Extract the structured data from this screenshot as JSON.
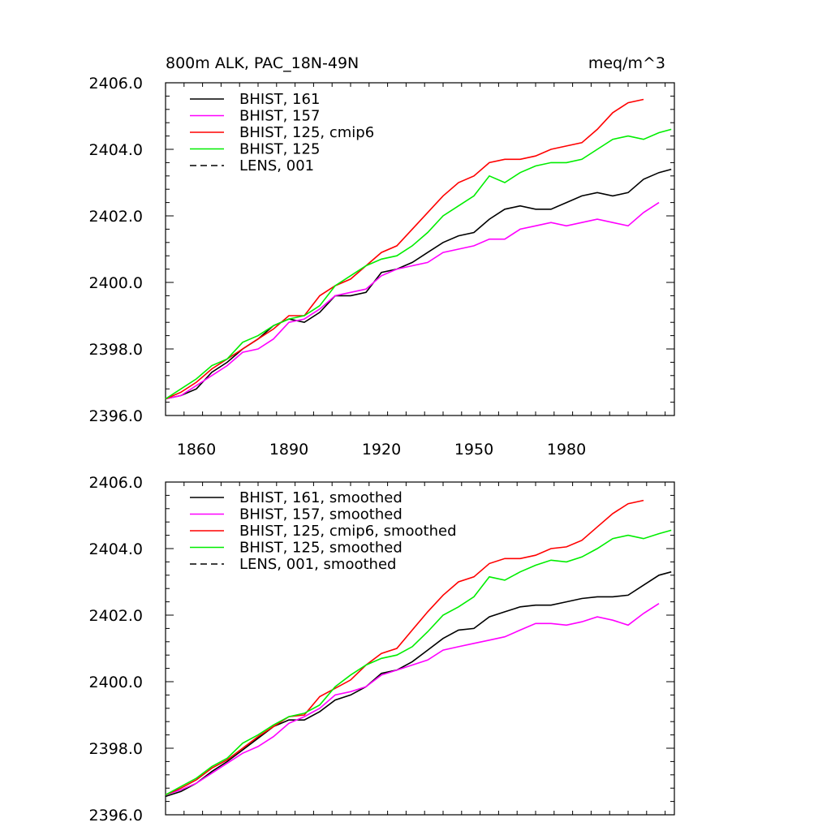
{
  "chart_data": [
    {
      "type": "line",
      "title_left": "800m ALK, PAC_18N-49N",
      "title_right": "meq/m^3",
      "xlim": [
        1850,
        2015
      ],
      "ylim": [
        2396.0,
        2406.0
      ],
      "x_ticks": [
        1860,
        1890,
        1920,
        1950,
        1980
      ],
      "y_ticks": [
        "2396.0",
        "2398.0",
        "2400.0",
        "2402.0",
        "2404.0",
        "2406.0"
      ],
      "legend_placement": "top-left",
      "series": [
        {
          "name": "BHIST, 161",
          "color": "#000000",
          "dash": "solid",
          "x": [
            1850,
            1855,
            1860,
            1865,
            1870,
            1875,
            1880,
            1885,
            1890,
            1895,
            1900,
            1905,
            1910,
            1915,
            1920,
            1925,
            1930,
            1935,
            1940,
            1945,
            1950,
            1955,
            1960,
            1965,
            1970,
            1975,
            1980,
            1985,
            1990,
            1995,
            2000,
            2005,
            2010,
            2014
          ],
          "y": [
            2396.5,
            2396.6,
            2396.8,
            2397.3,
            2397.6,
            2398.0,
            2398.3,
            2398.7,
            2398.9,
            2398.8,
            2399.1,
            2399.6,
            2399.6,
            2399.7,
            2400.3,
            2400.4,
            2400.6,
            2400.9,
            2401.2,
            2401.4,
            2401.5,
            2401.9,
            2402.2,
            2402.3,
            2402.2,
            2402.2,
            2402.4,
            2402.6,
            2402.7,
            2402.6,
            2402.7,
            2403.1,
            2403.3,
            2403.4
          ]
        },
        {
          "name": "BHIST, 157",
          "color": "#ff00ff",
          "dash": "solid",
          "x": [
            1850,
            1855,
            1860,
            1865,
            1870,
            1875,
            1880,
            1885,
            1890,
            1895,
            1900,
            1905,
            1910,
            1915,
            1920,
            1925,
            1930,
            1935,
            1940,
            1945,
            1950,
            1955,
            1960,
            1965,
            1970,
            1975,
            1980,
            1985,
            1990,
            1995,
            2000,
            2005,
            2010
          ],
          "y": [
            2396.5,
            2396.6,
            2396.9,
            2397.2,
            2397.5,
            2397.9,
            2398.0,
            2398.3,
            2398.8,
            2398.9,
            2399.2,
            2399.6,
            2399.7,
            2399.8,
            2400.2,
            2400.4,
            2400.5,
            2400.6,
            2400.9,
            2401.0,
            2401.1,
            2401.3,
            2401.3,
            2401.6,
            2401.7,
            2401.8,
            2401.7,
            2401.8,
            2401.9,
            2401.8,
            2401.7,
            2402.1,
            2402.4
          ]
        },
        {
          "name": "BHIST, 125, cmip6",
          "color": "#ff0000",
          "dash": "solid",
          "x": [
            1850,
            1855,
            1860,
            1865,
            1870,
            1875,
            1880,
            1885,
            1890,
            1895,
            1900,
            1905,
            1910,
            1915,
            1920,
            1925,
            1930,
            1935,
            1940,
            1945,
            1950,
            1955,
            1960,
            1965,
            1970,
            1975,
            1980,
            1985,
            1990,
            1995,
            2000,
            2005
          ],
          "y": [
            2396.5,
            2396.7,
            2397.0,
            2397.4,
            2397.7,
            2398.0,
            2398.3,
            2398.6,
            2399.0,
            2399.0,
            2399.6,
            2399.9,
            2400.1,
            2400.5,
            2400.9,
            2401.1,
            2401.6,
            2402.1,
            2402.6,
            2403.0,
            2403.2,
            2403.6,
            2403.7,
            2403.7,
            2403.8,
            2404.0,
            2404.1,
            2404.2,
            2404.6,
            2405.1,
            2405.4,
            2405.5
          ]
        },
        {
          "name": "BHIST, 125",
          "color": "#00ee00",
          "dash": "solid",
          "x": [
            1850,
            1855,
            1860,
            1865,
            1870,
            1875,
            1880,
            1885,
            1890,
            1895,
            1900,
            1905,
            1910,
            1915,
            1920,
            1925,
            1930,
            1935,
            1940,
            1945,
            1950,
            1955,
            1960,
            1965,
            1970,
            1975,
            1980,
            1985,
            1990,
            1995,
            2000,
            2005,
            2010,
            2014
          ],
          "y": [
            2396.5,
            2396.8,
            2397.1,
            2397.5,
            2397.7,
            2398.2,
            2398.4,
            2398.7,
            2398.9,
            2399.0,
            2399.3,
            2399.9,
            2400.2,
            2400.5,
            2400.7,
            2400.8,
            2401.1,
            2401.5,
            2402.0,
            2402.3,
            2402.6,
            2403.2,
            2403.0,
            2403.3,
            2403.5,
            2403.6,
            2403.6,
            2403.7,
            2404.0,
            2404.3,
            2404.4,
            2404.3,
            2404.5,
            2404.6
          ]
        },
        {
          "name": "LENS, 001",
          "color": "#000000",
          "dash": "dashed",
          "x": [],
          "y": []
        }
      ]
    },
    {
      "type": "line",
      "xlim": [
        1850,
        2015
      ],
      "ylim": [
        2396.0,
        2406.0
      ],
      "y_ticks": [
        "2396.0",
        "2398.0",
        "2400.0",
        "2402.0",
        "2404.0",
        "2406.0"
      ],
      "legend_placement": "top-left",
      "series": [
        {
          "name": "BHIST, 161, smoothed",
          "color": "#000000",
          "dash": "solid",
          "x": [
            1850,
            1855,
            1860,
            1865,
            1870,
            1875,
            1880,
            1885,
            1890,
            1895,
            1900,
            1905,
            1910,
            1915,
            1920,
            1925,
            1930,
            1935,
            1940,
            1945,
            1950,
            1955,
            1960,
            1965,
            1970,
            1975,
            1980,
            1985,
            1990,
            1995,
            2000,
            2005,
            2010,
            2014
          ],
          "y": [
            2396.55,
            2396.7,
            2396.95,
            2397.3,
            2397.6,
            2397.95,
            2398.3,
            2398.65,
            2398.85,
            2398.85,
            2399.1,
            2399.45,
            2399.6,
            2399.85,
            2400.25,
            2400.35,
            2400.6,
            2400.95,
            2401.3,
            2401.55,
            2401.6,
            2401.95,
            2402.1,
            2402.25,
            2402.3,
            2402.3,
            2402.4,
            2402.5,
            2402.55,
            2402.55,
            2402.6,
            2402.9,
            2403.2,
            2403.3
          ]
        },
        {
          "name": "BHIST, 157, smoothed",
          "color": "#ff00ff",
          "dash": "solid",
          "x": [
            1850,
            1855,
            1860,
            1865,
            1870,
            1875,
            1880,
            1885,
            1890,
            1895,
            1900,
            1905,
            1910,
            1915,
            1920,
            1925,
            1930,
            1935,
            1940,
            1945,
            1950,
            1955,
            1960,
            1965,
            1970,
            1975,
            1980,
            1985,
            1990,
            1995,
            2000,
            2005,
            2010
          ],
          "y": [
            2396.6,
            2396.75,
            2396.95,
            2397.25,
            2397.55,
            2397.85,
            2398.05,
            2398.35,
            2398.75,
            2398.95,
            2399.2,
            2399.6,
            2399.7,
            2399.85,
            2400.2,
            2400.35,
            2400.5,
            2400.65,
            2400.95,
            2401.05,
            2401.15,
            2401.25,
            2401.35,
            2401.55,
            2401.75,
            2401.75,
            2401.7,
            2401.8,
            2401.95,
            2401.85,
            2401.7,
            2402.05,
            2402.35
          ]
        },
        {
          "name": "BHIST, 125, cmip6, smoothed",
          "color": "#ff0000",
          "dash": "solid",
          "x": [
            1850,
            1855,
            1860,
            1865,
            1870,
            1875,
            1880,
            1885,
            1890,
            1895,
            1900,
            1905,
            1910,
            1915,
            1920,
            1925,
            1930,
            1935,
            1940,
            1945,
            1950,
            1955,
            1960,
            1965,
            1970,
            1975,
            1980,
            1985,
            1990,
            1995,
            2000,
            2005
          ],
          "y": [
            2396.6,
            2396.8,
            2397.05,
            2397.4,
            2397.65,
            2398.0,
            2398.35,
            2398.65,
            2398.95,
            2399.0,
            2399.55,
            2399.8,
            2400.05,
            2400.5,
            2400.85,
            2401.0,
            2401.55,
            2402.1,
            2402.6,
            2403.0,
            2403.15,
            2403.55,
            2403.7,
            2403.7,
            2403.8,
            2404.0,
            2404.05,
            2404.25,
            2404.65,
            2405.05,
            2405.35,
            2405.45
          ]
        },
        {
          "name": "BHIST, 125, smoothed",
          "color": "#00ee00",
          "dash": "solid",
          "x": [
            1850,
            1855,
            1860,
            1865,
            1870,
            1875,
            1880,
            1885,
            1890,
            1895,
            1900,
            1905,
            1910,
            1915,
            1920,
            1925,
            1930,
            1935,
            1940,
            1945,
            1950,
            1955,
            1960,
            1965,
            1970,
            1975,
            1980,
            1985,
            1990,
            1995,
            2000,
            2005,
            2010,
            2014
          ],
          "y": [
            2396.6,
            2396.85,
            2397.1,
            2397.45,
            2397.7,
            2398.15,
            2398.4,
            2398.7,
            2398.95,
            2399.05,
            2399.3,
            2399.85,
            2400.2,
            2400.5,
            2400.7,
            2400.8,
            2401.05,
            2401.5,
            2402.0,
            2402.25,
            2402.55,
            2403.15,
            2403.05,
            2403.3,
            2403.5,
            2403.65,
            2403.6,
            2403.75,
            2404.0,
            2404.3,
            2404.4,
            2404.3,
            2404.45,
            2404.55
          ]
        },
        {
          "name": "LENS, 001, smoothed",
          "color": "#000000",
          "dash": "dashed",
          "x": [],
          "y": []
        }
      ]
    }
  ]
}
